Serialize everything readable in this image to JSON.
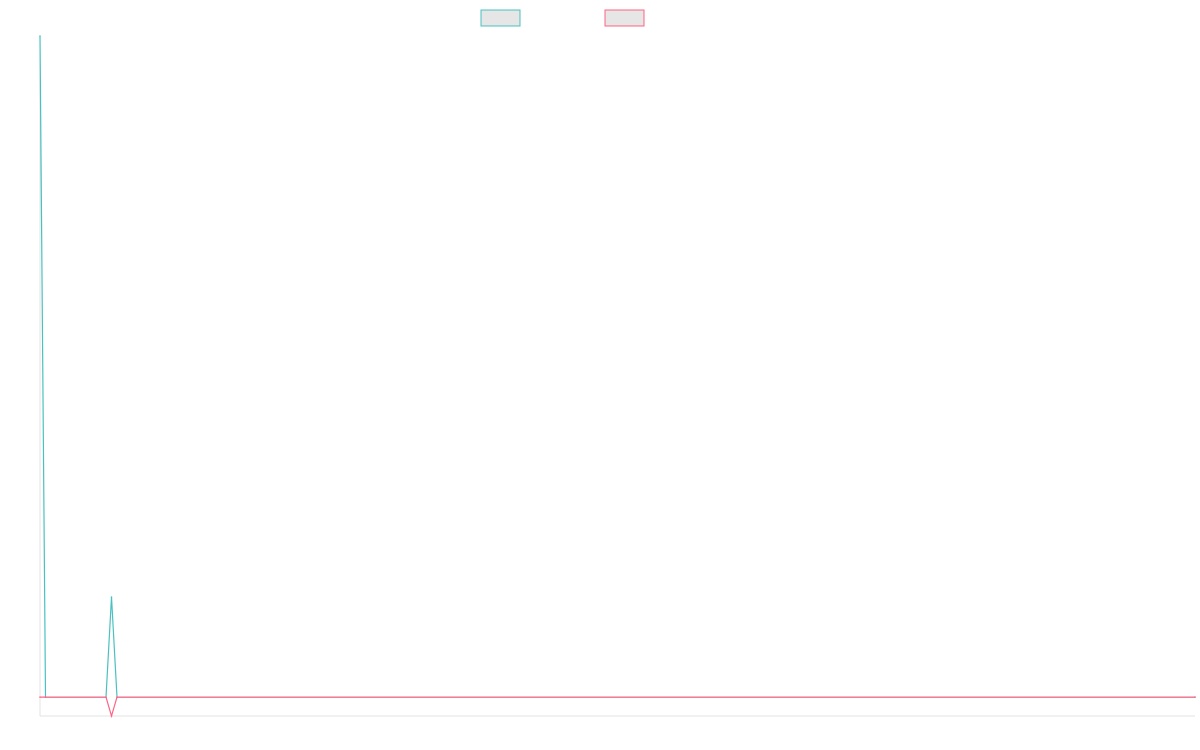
{
  "chart_data": {
    "type": "line",
    "title": "",
    "xlabel": "",
    "ylabel": "",
    "grid": false,
    "legend_position": "top-center",
    "x": [
      0,
      1,
      12,
      13,
      14,
      210
    ],
    "xlim": [
      0,
      210
    ],
    "ylim": [
      -1,
      35
    ],
    "series": [
      {
        "color": "#4bc0c0",
        "fill": "#e6e6e6",
        "values": [
          35,
          0,
          0,
          5.3,
          0,
          0
        ]
      },
      {
        "color": "#ff6384",
        "fill": "#e6e6e6",
        "values": [
          0,
          0,
          0,
          -1,
          0,
          0
        ]
      }
    ]
  }
}
